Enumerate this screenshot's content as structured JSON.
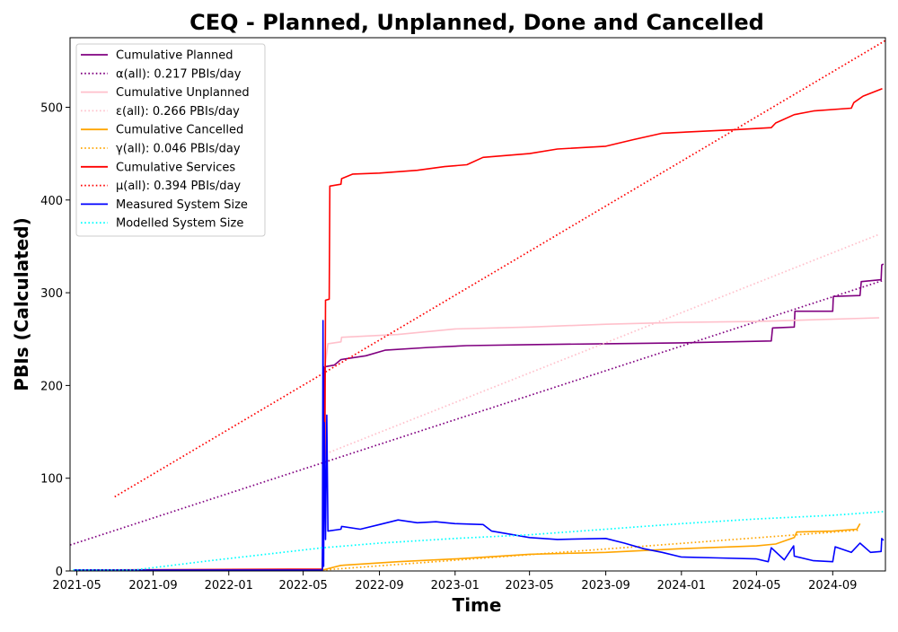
{
  "chart_data": {
    "type": "line",
    "title": "CEQ - Planned, Unplanned, Done  and Cancelled",
    "xlabel": "Time",
    "ylabel": "PBIs (Calculated)",
    "xlim": [
      "2021-04-20",
      "2024-11-25"
    ],
    "ylim": [
      0,
      575
    ],
    "x_ticks": [
      "2021-05",
      "2021-09",
      "2022-01",
      "2022-05",
      "2022-09",
      "2023-01",
      "2023-05",
      "2023-09",
      "2024-01",
      "2024-05",
      "2024-09"
    ],
    "y_ticks": [
      0,
      100,
      200,
      300,
      400,
      500
    ],
    "grid": false,
    "legend_position": "top-left",
    "series": [
      {
        "name": "Cumulative Planned",
        "color": "#800080",
        "style": "solid",
        "points": [
          [
            "2021-04-25",
            1
          ],
          [
            "2022-06-01",
            1
          ],
          [
            "2022-06-03",
            120
          ],
          [
            "2022-06-04",
            220
          ],
          [
            "2022-06-20",
            222
          ],
          [
            "2022-07-01",
            228
          ],
          [
            "2022-08-10",
            232
          ],
          [
            "2022-09-10",
            238
          ],
          [
            "2022-11-20",
            241
          ],
          [
            "2023-01-20",
            243
          ],
          [
            "2023-05-01",
            244
          ],
          [
            "2023-09-01",
            245
          ],
          [
            "2024-01-01",
            246
          ],
          [
            "2024-05-25",
            248
          ],
          [
            "2024-05-27",
            262
          ],
          [
            "2024-07-01",
            263
          ],
          [
            "2024-07-02",
            280
          ],
          [
            "2024-09-01",
            280
          ],
          [
            "2024-09-02",
            296
          ],
          [
            "2024-10-15",
            297
          ],
          [
            "2024-10-17",
            312
          ],
          [
            "2024-11-18",
            314
          ],
          [
            "2024-11-19",
            330
          ],
          [
            "2024-11-22",
            331
          ]
        ]
      },
      {
        "name": "α(all): 0.217 PBIs/day",
        "color": "#800080",
        "style": "dotted",
        "points": [
          [
            "2021-04-20",
            28
          ],
          [
            "2024-11-20",
            313
          ]
        ]
      },
      {
        "name": "Cumulative Unplanned",
        "color": "#ffc0cb",
        "style": "solid",
        "points": [
          [
            "2022-06-05",
            220
          ],
          [
            "2022-06-10",
            245
          ],
          [
            "2022-07-01",
            247
          ],
          [
            "2022-07-02",
            252
          ],
          [
            "2022-10-01",
            255
          ],
          [
            "2023-01-01",
            261
          ],
          [
            "2023-05-01",
            263
          ],
          [
            "2023-09-01",
            266
          ],
          [
            "2024-01-01",
            268
          ],
          [
            "2024-05-01",
            269
          ],
          [
            "2024-11-15",
            273
          ]
        ]
      },
      {
        "name": "ε(all): 0.266 PBIs/day",
        "color": "#ffc0cb",
        "style": "dotted",
        "points": [
          [
            "2022-06-01",
            125
          ],
          [
            "2024-11-15",
            363
          ]
        ]
      },
      {
        "name": "Cumulative Cancelled",
        "color": "#ffa500",
        "style": "solid",
        "points": [
          [
            "2022-06-01",
            1
          ],
          [
            "2022-07-01",
            6
          ],
          [
            "2022-10-01",
            10
          ],
          [
            "2023-01-01",
            13
          ],
          [
            "2023-05-01",
            18
          ],
          [
            "2023-09-01",
            20
          ],
          [
            "2024-01-01",
            24
          ],
          [
            "2024-05-01",
            27
          ],
          [
            "2024-06-01",
            29
          ],
          [
            "2024-07-01",
            36
          ],
          [
            "2024-07-05",
            42
          ],
          [
            "2024-09-01",
            43
          ],
          [
            "2024-10-10",
            45
          ],
          [
            "2024-10-15",
            51
          ]
        ]
      },
      {
        "name": "γ(all): 0.046 PBIs/day",
        "color": "#ffa500",
        "style": "dotted",
        "points": [
          [
            "2022-06-01",
            1
          ],
          [
            "2024-10-15",
            44
          ]
        ]
      },
      {
        "name": "Cumulative Services",
        "color": "#ff0000",
        "style": "solid",
        "points": [
          [
            "2021-04-25",
            1
          ],
          [
            "2022-06-01",
            2
          ],
          [
            "2022-06-05",
            130
          ],
          [
            "2022-06-06",
            292
          ],
          [
            "2022-06-12",
            293
          ],
          [
            "2022-06-13",
            415
          ],
          [
            "2022-07-01",
            417
          ],
          [
            "2022-07-02",
            423
          ],
          [
            "2022-07-20",
            428
          ],
          [
            "2022-09-01",
            429
          ],
          [
            "2022-11-01",
            432
          ],
          [
            "2022-12-15",
            436
          ],
          [
            "2023-01-20",
            438
          ],
          [
            "2023-02-15",
            446
          ],
          [
            "2023-05-01",
            450
          ],
          [
            "2023-06-15",
            455
          ],
          [
            "2023-09-01",
            458
          ],
          [
            "2023-10-15",
            465
          ],
          [
            "2023-12-01",
            472
          ],
          [
            "2024-02-01",
            474
          ],
          [
            "2024-04-01",
            476
          ],
          [
            "2024-05-25",
            478
          ],
          [
            "2024-06-01",
            483
          ],
          [
            "2024-07-01",
            492
          ],
          [
            "2024-08-01",
            496
          ],
          [
            "2024-10-01",
            499
          ],
          [
            "2024-10-05",
            505
          ],
          [
            "2024-10-20",
            512
          ],
          [
            "2024-11-20",
            520
          ]
        ]
      },
      {
        "name": "μ(all): 0.394 PBIs/day",
        "color": "#ff0000",
        "style": "dotted",
        "points": [
          [
            "2021-07-01",
            80
          ],
          [
            "2024-11-25",
            572
          ]
        ]
      },
      {
        "name": "Measured System Size",
        "color": "#0000ff",
        "style": "solid",
        "points": [
          [
            "2021-04-25",
            1
          ],
          [
            "2022-06-01",
            1
          ],
          [
            "2022-06-02",
            270
          ],
          [
            "2022-06-03",
            5
          ],
          [
            "2022-06-04",
            160
          ],
          [
            "2022-06-06",
            34
          ],
          [
            "2022-06-08",
            168
          ],
          [
            "2022-06-10",
            43
          ],
          [
            "2022-07-01",
            45
          ],
          [
            "2022-07-02",
            48
          ],
          [
            "2022-08-01",
            45
          ],
          [
            "2022-09-01",
            50
          ],
          [
            "2022-10-01",
            55
          ],
          [
            "2022-11-01",
            52
          ],
          [
            "2022-12-01",
            53
          ],
          [
            "2023-01-01",
            51
          ],
          [
            "2023-02-15",
            50
          ],
          [
            "2023-03-01",
            43
          ],
          [
            "2023-05-01",
            36
          ],
          [
            "2023-06-15",
            34
          ],
          [
            "2023-09-01",
            35
          ],
          [
            "2023-10-01",
            30
          ],
          [
            "2023-11-01",
            24
          ],
          [
            "2023-12-01",
            20
          ],
          [
            "2024-01-01",
            15
          ],
          [
            "2024-03-01",
            14
          ],
          [
            "2024-05-01",
            13
          ],
          [
            "2024-05-20",
            10
          ],
          [
            "2024-05-25",
            25
          ],
          [
            "2024-06-15",
            12
          ],
          [
            "2024-06-30",
            27
          ],
          [
            "2024-07-01",
            16
          ],
          [
            "2024-08-01",
            11
          ],
          [
            "2024-09-01",
            10
          ],
          [
            "2024-09-05",
            26
          ],
          [
            "2024-10-01",
            20
          ],
          [
            "2024-10-15",
            30
          ],
          [
            "2024-11-01",
            20
          ],
          [
            "2024-11-18",
            21
          ],
          [
            "2024-11-19",
            35
          ],
          [
            "2024-11-22",
            33
          ]
        ]
      },
      {
        "name": "Modelled System Size",
        "color": "#00ffff",
        "style": "dotted",
        "points": [
          [
            "2021-04-25",
            1
          ],
          [
            "2021-08-01",
            1
          ],
          [
            "2021-12-01",
            11
          ],
          [
            "2022-06-01",
            25
          ],
          [
            "2022-09-01",
            30
          ],
          [
            "2023-01-01",
            35
          ],
          [
            "2023-05-01",
            39
          ],
          [
            "2023-09-01",
            45
          ],
          [
            "2024-01-01",
            51
          ],
          [
            "2024-05-01",
            56
          ],
          [
            "2024-09-01",
            60
          ],
          [
            "2024-11-22",
            64
          ]
        ]
      }
    ]
  }
}
